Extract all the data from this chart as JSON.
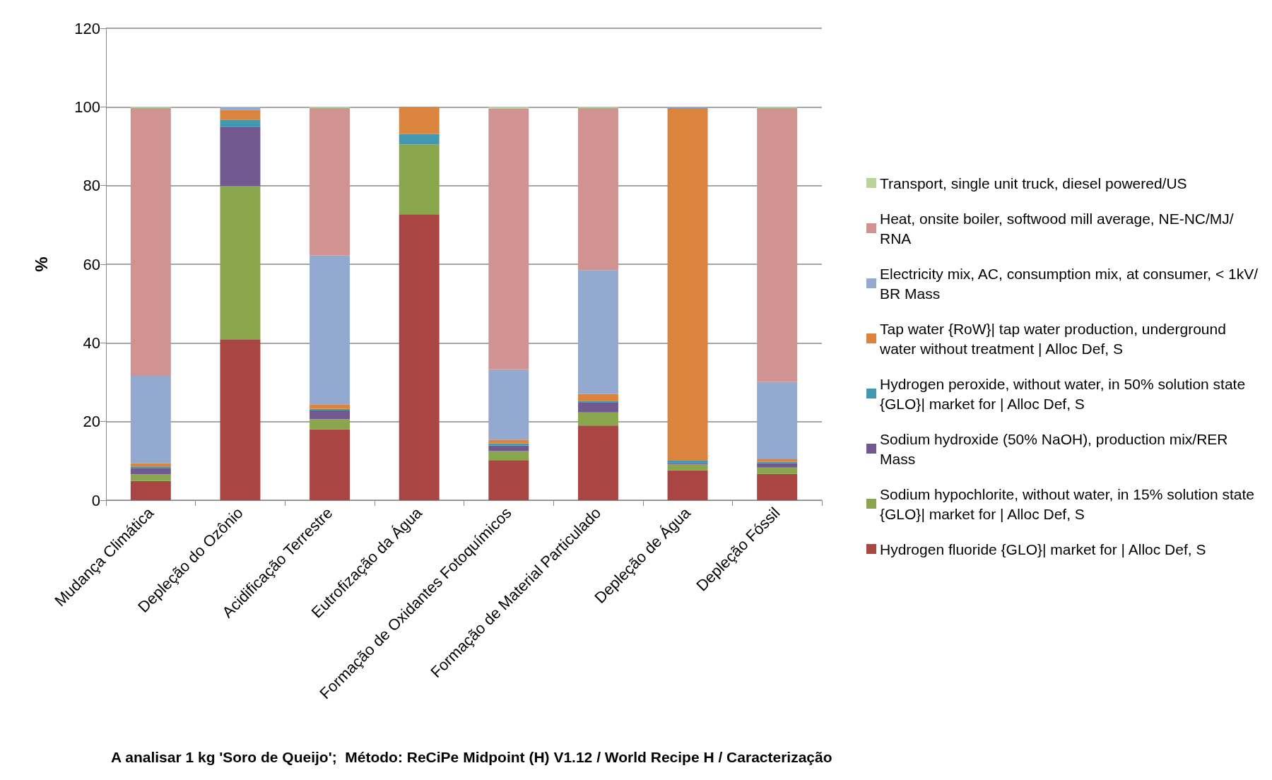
{
  "chart_data": {
    "type": "bar",
    "stacked": true,
    "ylabel": "%",
    "ylim": [
      0,
      120
    ],
    "yticks": [
      0,
      20,
      40,
      60,
      80,
      100,
      120
    ],
    "grid": "y",
    "legend": "right",
    "categories": [
      "Mudança Climática",
      "Depleção do Ozônio",
      "Acidificação Terrestre",
      "Eutrofização da Água",
      "Formação de Oxidantes Fotoquímicos",
      "Formação de Material Particulado",
      "Depleção de Água",
      "Depleção Fóssil"
    ],
    "series": [
      {
        "name": "Hydrogen fluoride {GLO}| market for | Alloc Def, S",
        "color": "#a94543",
        "values": [
          4.9,
          40.9,
          18.0,
          72.7,
          10.2,
          19.0,
          7.6,
          6.7
        ]
      },
      {
        "name": "Sodium hypochlorite, without water, in 15% solution state {GLO}| market for | Alloc Def, S",
        "color": "#8aa64d",
        "values": [
          1.7,
          39.0,
          2.6,
          17.8,
          2.3,
          3.3,
          1.5,
          1.6
        ]
      },
      {
        "name": "Sodium hydroxide (50% NaOH), production mix/RER Mass",
        "color": "#71598f",
        "values": [
          1.6,
          15.1,
          2.2,
          0,
          1.4,
          2.5,
          0.3,
          1.1
        ]
      },
      {
        "name": "Hydrogen peroxide, without water, in 50% solution state {GLO}| market for | Alloc Def, S",
        "color": "#4298b0",
        "values": [
          0.4,
          1.8,
          0.4,
          2.6,
          0.5,
          0.5,
          0.8,
          0.4
        ]
      },
      {
        "name": "Tap water {RoW}| tap water production, underground water without treatment | Alloc Def, S",
        "color": "#db843d",
        "values": [
          0.8,
          2.5,
          1.2,
          6.9,
          1.0,
          1.7,
          89.5,
          0.6
        ]
      },
      {
        "name": "Electricity mix, AC, consumption mix, at consumer, < 1kV/BR Mass",
        "color": "#93a9cf",
        "values": [
          22.2,
          0.6,
          37.9,
          0,
          17.9,
          31.5,
          0.3,
          19.7
        ]
      },
      {
        "name": "Heat, onsite boiler, softwood mill average, NE-NC/MJ/RNA",
        "color": "#d19392",
        "values": [
          68.1,
          0,
          37.4,
          0,
          66.2,
          41.2,
          0,
          69.6
        ]
      },
      {
        "name": "Transport, single unit truck, diesel powered/US",
        "color": "#b9d49a",
        "values": [
          0.3,
          0.1,
          0.3,
          0,
          0.5,
          0.3,
          0,
          0.3
        ]
      }
    ],
    "annotations": [
      "A analisar 1 kg 'Soro de Queijo';  Método: ReCiPe Midpoint (H) V1.12 / World Recipe H / Caracterização"
    ]
  }
}
